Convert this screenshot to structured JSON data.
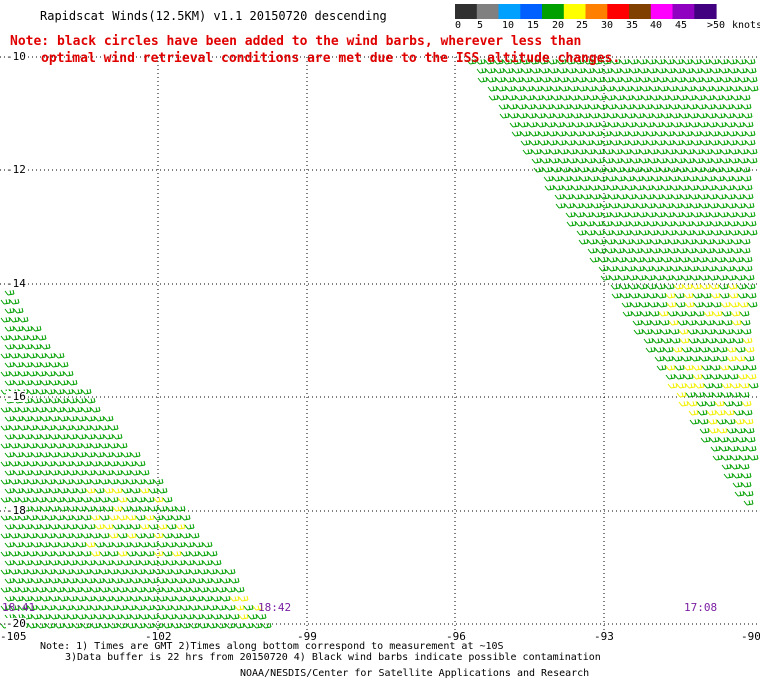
{
  "header": {
    "title": "Rapidscat Winds(12.5KM) v1.1 20150720 descending",
    "note_line1": "Note: black circles have been added to the wind barbs, wherever less than",
    "note_line2": "optimal wind retrieval conditions are met due to the ISS altitude changes."
  },
  "colorbar": {
    "units": "knots",
    "labels": [
      "0",
      "5",
      "10",
      "15",
      "20",
      "25",
      "30",
      "35",
      "40",
      "45",
      ">50"
    ],
    "colors": [
      "#303030",
      "#808080",
      "#00a0ff",
      "#0060ff",
      "#00a000",
      "#ffff00",
      "#ff8000",
      "#ff0000",
      "#804000",
      "#ff00ff",
      "#9000c0",
      "#40007f"
    ]
  },
  "map": {
    "lat_labels": [
      "-10",
      "-12",
      "-14",
      "-16",
      "-18",
      "-20"
    ],
    "lon_labels": [
      "-105",
      "-102",
      "-99",
      "-96",
      "-93",
      "-90"
    ],
    "times": [
      "18:41",
      "18:42",
      "17:08"
    ],
    "legend": {
      "dominant_color": "#00a000",
      "secondary_color": "#f0f000"
    }
  },
  "footer": {
    "note_line1": "Note: 1) Times are GMT 2)Times along bottom correspond to measurement at ~10S",
    "note_line2": "3)Data buffer is 22 hrs from 20150720 4) Black wind barbs indicate possible contamination",
    "credit": "NOAA/NESDIS/Center for Satellite Applications and Research"
  }
}
